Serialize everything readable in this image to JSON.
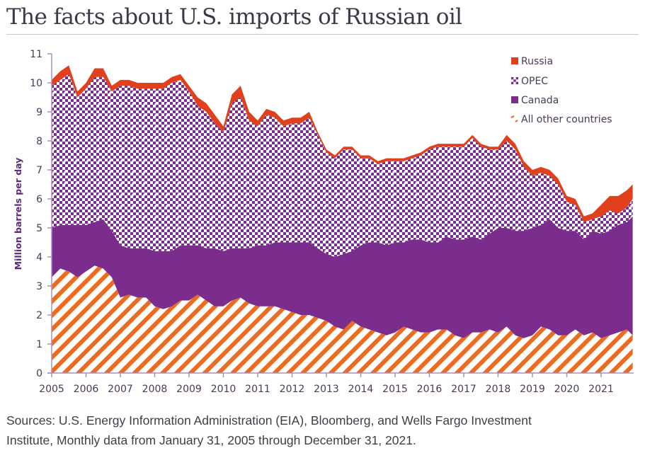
{
  "header": {
    "title": "The facts about U.S. imports of Russian oil"
  },
  "footer": {
    "source_line1": "Sources: U.S. Energy Information Administration (EIA), Bloomberg, and Wells Fargo Investment",
    "source_line2": "Institute, Monthly data from January 31, 2005 through December 31, 2021."
  },
  "colors": {
    "russia": "#e0401c",
    "opec": "#7b2d8e",
    "canada": "#7b2d8e",
    "other": "#ec6b1f",
    "axis": "#a88fbf",
    "text": "#4a3a55"
  },
  "chart_data": {
    "type": "area",
    "stacked": true,
    "title": "The facts about U.S. imports of Russian oil",
    "xlabel": "",
    "ylabel": "Million barrels per day",
    "xlim": [
      2005.0,
      2021.95
    ],
    "ylim": [
      0,
      11
    ],
    "x_ticks": [
      2005,
      2006,
      2007,
      2008,
      2009,
      2010,
      2011,
      2012,
      2013,
      2014,
      2015,
      2016,
      2017,
      2018,
      2019,
      2020,
      2021
    ],
    "y_ticks": [
      0,
      1,
      2,
      3,
      4,
      5,
      6,
      7,
      8,
      9,
      10,
      11
    ],
    "grid": false,
    "legend_position": "top-right",
    "legend": [
      "Russia",
      "OPEC",
      "Canada",
      "All other countries"
    ],
    "x": [
      2005.0,
      2005.25,
      2005.5,
      2005.75,
      2006.0,
      2006.25,
      2006.5,
      2006.75,
      2007.0,
      2007.25,
      2007.5,
      2007.75,
      2008.0,
      2008.25,
      2008.5,
      2008.75,
      2009.0,
      2009.25,
      2009.5,
      2009.75,
      2010.0,
      2010.25,
      2010.5,
      2010.75,
      2011.0,
      2011.25,
      2011.5,
      2011.75,
      2012.0,
      2012.25,
      2012.5,
      2012.75,
      2013.0,
      2013.25,
      2013.5,
      2013.75,
      2014.0,
      2014.25,
      2014.5,
      2014.75,
      2015.0,
      2015.25,
      2015.5,
      2015.75,
      2016.0,
      2016.25,
      2016.5,
      2016.75,
      2017.0,
      2017.25,
      2017.5,
      2017.75,
      2018.0,
      2018.25,
      2018.5,
      2018.75,
      2019.0,
      2019.25,
      2019.5,
      2019.75,
      2020.0,
      2020.25,
      2020.5,
      2020.75,
      2021.0,
      2021.25,
      2021.5,
      2021.75,
      2021.92
    ],
    "series": [
      {
        "name": "All other countries",
        "values": [
          3.3,
          3.6,
          3.5,
          3.3,
          3.5,
          3.7,
          3.6,
          3.3,
          2.6,
          2.7,
          2.6,
          2.6,
          2.3,
          2.2,
          2.3,
          2.5,
          2.5,
          2.7,
          2.5,
          2.3,
          2.3,
          2.5,
          2.6,
          2.4,
          2.3,
          2.3,
          2.3,
          2.2,
          2.1,
          2.0,
          2.0,
          1.9,
          1.8,
          1.6,
          1.5,
          1.8,
          1.6,
          1.5,
          1.4,
          1.3,
          1.4,
          1.6,
          1.5,
          1.4,
          1.4,
          1.5,
          1.5,
          1.3,
          1.2,
          1.4,
          1.4,
          1.5,
          1.4,
          1.6,
          1.3,
          1.2,
          1.3,
          1.6,
          1.5,
          1.3,
          1.3,
          1.5,
          1.3,
          1.4,
          1.2,
          1.3,
          1.4,
          1.5,
          1.3
        ]
      },
      {
        "name": "Canada",
        "values": [
          1.7,
          1.5,
          1.6,
          1.8,
          1.6,
          1.5,
          1.7,
          1.6,
          1.8,
          1.6,
          1.7,
          1.7,
          1.9,
          2.0,
          1.9,
          1.9,
          1.9,
          1.7,
          1.8,
          2.0,
          1.9,
          1.8,
          1.7,
          1.9,
          2.1,
          2.1,
          2.2,
          2.3,
          2.4,
          2.5,
          2.5,
          2.4,
          2.3,
          2.4,
          2.6,
          2.4,
          2.8,
          3.0,
          3.1,
          3.1,
          3.1,
          2.9,
          3.1,
          3.2,
          3.1,
          3.0,
          3.2,
          3.3,
          3.4,
          3.3,
          3.2,
          3.3,
          3.6,
          3.4,
          3.6,
          3.7,
          3.7,
          3.5,
          3.8,
          3.7,
          3.6,
          3.4,
          3.3,
          3.5,
          3.6,
          3.6,
          3.7,
          3.7,
          4.1
        ]
      },
      {
        "name": "OPEC",
        "values": [
          4.9,
          5.0,
          5.2,
          4.4,
          4.7,
          5.0,
          4.9,
          4.8,
          5.5,
          5.6,
          5.5,
          5.5,
          5.6,
          5.6,
          5.8,
          5.7,
          5.3,
          4.8,
          4.7,
          4.3,
          4.1,
          5.0,
          5.2,
          4.4,
          4.1,
          4.5,
          4.3,
          4.0,
          4.1,
          4.1,
          4.3,
          3.9,
          3.5,
          3.4,
          3.6,
          3.5,
          3.0,
          2.9,
          2.7,
          2.9,
          2.8,
          2.8,
          2.8,
          2.9,
          3.2,
          3.3,
          3.1,
          3.2,
          3.2,
          3.4,
          3.2,
          2.9,
          2.7,
          3.0,
          2.8,
          2.2,
          1.8,
          1.8,
          1.5,
          1.5,
          1.0,
          0.9,
          0.6,
          0.4,
          0.6,
          0.7,
          0.4,
          0.5,
          0.6
        ]
      },
      {
        "name": "Russia",
        "values": [
          0.2,
          0.3,
          0.3,
          0.2,
          0.2,
          0.3,
          0.3,
          0.2,
          0.2,
          0.2,
          0.2,
          0.2,
          0.2,
          0.2,
          0.2,
          0.2,
          0.2,
          0.3,
          0.3,
          0.3,
          0.2,
          0.3,
          0.4,
          0.3,
          0.2,
          0.2,
          0.2,
          0.2,
          0.2,
          0.2,
          0.2,
          0.1,
          0.1,
          0.1,
          0.1,
          0.1,
          0.1,
          0.1,
          0.1,
          0.1,
          0.1,
          0.1,
          0.1,
          0.1,
          0.1,
          0.1,
          0.1,
          0.1,
          0.1,
          0.1,
          0.1,
          0.1,
          0.1,
          0.2,
          0.2,
          0.2,
          0.2,
          0.2,
          0.2,
          0.2,
          0.2,
          0.2,
          0.2,
          0.2,
          0.4,
          0.5,
          0.6,
          0.6,
          0.5
        ]
      }
    ]
  }
}
